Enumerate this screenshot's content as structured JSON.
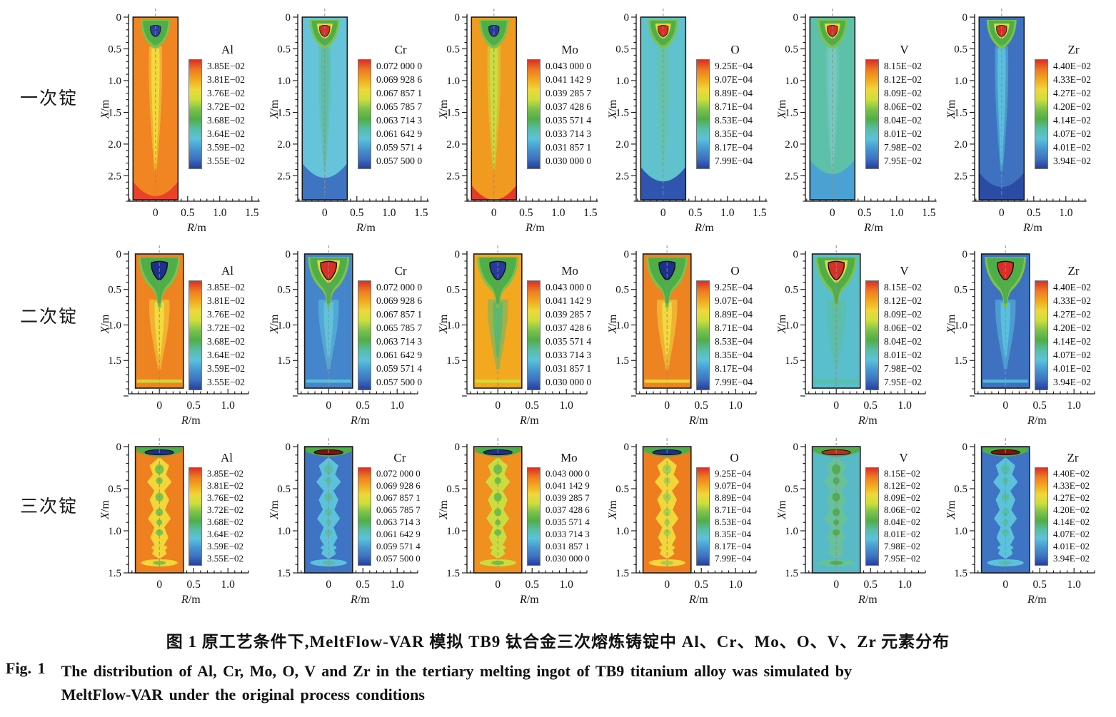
{
  "axis": {
    "x_var": "R",
    "x_unit": "/m",
    "y_var": "X",
    "y_unit": "/m"
  },
  "colorbar": [
    "#d92f26",
    "#ee7a22",
    "#f2a81f",
    "#eed83a",
    "#cede3c",
    "#7cc24b",
    "#4fae47",
    "#57bda5",
    "#5cc2dc",
    "#4597d0",
    "#3e72c1",
    "#253f9e"
  ],
  "legends": {
    "Al": {
      "title": "Al",
      "values": [
        "3.85E−02",
        "3.81E−02",
        "3.76E−02",
        "3.72E−02",
        "3.68E−02",
        "3.64E−02",
        "3.59E−02",
        "3.55E−02"
      ]
    },
    "Cr": {
      "title": "Cr",
      "values": [
        "0.072 000 0",
        "0.069 928 6",
        "0.067 857 1",
        "0.065 785 7",
        "0.063 714 3",
        "0.061 642 9",
        "0.059 571 4",
        "0.057 500 0"
      ]
    },
    "Mo": {
      "title": "Mo",
      "values": [
        "0.043 000 0",
        "0.041 142 9",
        "0.039 285 7",
        "0.037 428 6",
        "0.035 571 4",
        "0.033 714 3",
        "0.031 857 1",
        "0.030 000 0"
      ]
    },
    "O": {
      "title": "O",
      "values": [
        "9.25E−04",
        "9.07E−04",
        "8.89E−04",
        "8.71E−04",
        "8.53E−04",
        "8.35E−04",
        "8.17E−04",
        "7.99E−04"
      ]
    },
    "V": {
      "title": "V",
      "values": [
        "8.15E−02",
        "8.12E−02",
        "8.09E−02",
        "8.06E−02",
        "8.04E−02",
        "8.01E−02",
        "7.98E−02",
        "7.95E−02"
      ]
    },
    "Zr": {
      "title": "Zr",
      "values": [
        "4.40E−02",
        "4.33E−02",
        "4.27E−02",
        "4.20E−02",
        "4.14E−02",
        "4.07E−02",
        "4.01E−02",
        "3.94E−02"
      ]
    }
  },
  "rows": [
    {
      "key": "r1",
      "label": "一次锭",
      "yticks": [
        "0",
        "0.5",
        "1.0",
        "1.5",
        "2.0",
        "2.5"
      ],
      "ymax": 2.9,
      "plots": [
        {
          "el": "Al",
          "xticks": [
            "0",
            "0.5",
            "1.0",
            "1.5"
          ],
          "xmax": 1.62
        },
        {
          "el": "Cr",
          "xticks": [
            "0",
            "0.5",
            "1.0",
            "1.5"
          ],
          "xmax": 1.62
        },
        {
          "el": "Mo",
          "xticks": [
            "0",
            "0.5",
            "1.0",
            "1.5"
          ],
          "xmax": 1.62
        },
        {
          "el": "O",
          "xticks": [
            "0",
            "0.5",
            "1.0",
            "1.5"
          ],
          "xmax": 1.62
        },
        {
          "el": "V",
          "xticks": [
            "0",
            "0.5",
            "1.0",
            "1.5"
          ],
          "xmax": 1.62
        },
        {
          "el": "Zr",
          "xticks": [
            "0",
            "0.5",
            "1.0"
          ],
          "xmax": 1.32
        }
      ]
    },
    {
      "key": "r2",
      "label": "二次锭",
      "yticks": [
        "0",
        "0.5",
        "1.0",
        "1.5"
      ],
      "ymax": 1.97,
      "plots": [
        {
          "el": "Al",
          "xticks": [
            "0",
            "0.5",
            "1.0"
          ],
          "xmax": 1.3
        },
        {
          "el": "Cr",
          "xticks": [
            "0",
            "0.5",
            "1.0"
          ],
          "xmax": 1.3
        },
        {
          "el": "Mo",
          "xticks": [
            "0",
            "0.5",
            "1.0"
          ],
          "xmax": 1.3
        },
        {
          "el": "O",
          "xticks": [
            "0",
            "0.5",
            "1.0"
          ],
          "xmax": 1.3
        },
        {
          "el": "V",
          "xticks": [
            "0",
            "0.5",
            "1.0"
          ],
          "xmax": 1.3
        },
        {
          "el": "Zr",
          "xticks": [
            "0",
            "0.5",
            "1.0"
          ],
          "xmax": 1.3
        }
      ]
    },
    {
      "key": "r3",
      "label": "三次锭",
      "yticks": [
        "0",
        "0.5",
        "1.0",
        "1.5"
      ],
      "ymax": 1.5,
      "plots": [
        {
          "el": "Al",
          "xticks": [
            "0",
            "0.5",
            "1.0"
          ],
          "xmax": 1.3
        },
        {
          "el": "Cr",
          "xticks": [
            "0",
            "0.5",
            "1.0"
          ],
          "xmax": 1.3
        },
        {
          "el": "Mo",
          "xticks": [
            "0",
            "0.5",
            "1.0"
          ],
          "xmax": 1.3
        },
        {
          "el": "O",
          "xticks": [
            "0",
            "0.5",
            "1.0"
          ],
          "xmax": 1.3
        },
        {
          "el": "V",
          "xticks": [
            "0",
            "0.5",
            "1.0"
          ],
          "xmax": 1.3
        },
        {
          "el": "Zr",
          "xticks": [
            "0",
            "0.5",
            "1.0"
          ],
          "xmax": 1.3
        }
      ]
    }
  ],
  "patterns": {
    "r1": {
      "Al": {
        "bg": "#f08521",
        "col": "#f4d93e",
        "v": "#4fae47",
        "vout": "#7cc24b",
        "ring": null,
        "core": "#2b3f9e",
        "bottom": "#e8432a",
        "bf": 0.9
      },
      "Cr": {
        "bg": "#66c4da",
        "col": "#5abfa4",
        "v": "#4fae47",
        "vout": "#7cc24b",
        "ring": "#e4d93c",
        "core": "#d92f26",
        "bottom": "#3e74c2",
        "bf": 0.8
      },
      "Mo": {
        "bg": "#f19a20",
        "col": "#ccdc3e",
        "v": "#4fae47",
        "vout": "#7cc24b",
        "ring": null,
        "core": "#28389b",
        "bottom": "#e23c28",
        "bf": 0.92
      },
      "O": {
        "bg": "#60c2cc",
        "col": "#64c3ab",
        "v": "#4fae47",
        "vout": "#7cc24b",
        "ring": "#e4d93c",
        "core": "#d92f26",
        "bottom": "#2f55ae",
        "bf": 0.82
      },
      "V": {
        "bg": "#5dc0a8",
        "col": "#74cac0",
        "v": "#4fae47",
        "vout": "#7cc24b",
        "ring": "#e4d93c",
        "core": "#d92f26",
        "bottom": "#4aa2d4",
        "bf": 0.78
      },
      "Zr": {
        "bg": "#3e72c1",
        "col": "#5abedc",
        "v": "#4fae47",
        "vout": "#7cc24b",
        "ring": "#cede3c",
        "core": "#d92f26",
        "bottom": "#2b4ca5",
        "bf": 0.85
      }
    },
    "r2": {
      "Al": {
        "bg": "#ee8421",
        "v": "#4fae47",
        "vout": "#7cc24b",
        "col": "#f2d93e",
        "ring": null,
        "core": "#1f2f8e",
        "band": "#cede3c"
      },
      "Cr": {
        "bg": "#4585cc",
        "v": "#4fae47",
        "vout": "#7cc24b",
        "col": "#5dc3dc",
        "ring": "#e4d93c",
        "core": "#d92f26",
        "band": "#5dc3dc"
      },
      "Mo": {
        "bg": "#f2a81f",
        "v": "#4fae47",
        "vout": "#7cc24b",
        "col": "#5cb96e",
        "ring": null,
        "core": "#28389b",
        "band": "#cede3c"
      },
      "O": {
        "bg": "#ee8421",
        "v": "#4fae47",
        "vout": "#7cc24b",
        "col": "#f2d93e",
        "ring": null,
        "core": "#1f2f8e",
        "band": "#f2d93e"
      },
      "V": {
        "bg": "#59bfcd",
        "v": "#4fae47",
        "vout": "#7cc24b",
        "col": "#5abfa4",
        "ring": "#e4d93c",
        "core": "#d92f26",
        "band": "#5abfa4"
      },
      "Zr": {
        "bg": "#3e72c1",
        "v": "#4fae47",
        "vout": "#7cc24b",
        "col": "#5abedc",
        "ring": null,
        "core": "#d92f26",
        "band": "#5abedc"
      }
    },
    "r3": {
      "Al": {
        "bg": "#ee8020",
        "strip": "#4fae47",
        "topband": "#1d2f86",
        "col": "#f2d63a",
        "blob": "#7cc24b"
      },
      "Cr": {
        "bg": "#3e74c3",
        "strip": "#4fae47",
        "topband": "#7c130e",
        "col": "#5cc2dc",
        "blob": "#57bda5"
      },
      "Mo": {
        "bg": "#ef901f",
        "strip": "#4fae47",
        "topband": "#1d2f86",
        "col": "#ccdc3e",
        "blob": "#6fbf4a"
      },
      "O": {
        "bg": "#ee7d20",
        "strip": "#4fae47",
        "topband": "#1d2f86",
        "col": "#f2d63a",
        "blob": "#a9d04a"
      },
      "V": {
        "bg": "#57bac6",
        "strip": "#4fae47",
        "topband": "#c32b1e",
        "col": "#67c29b",
        "blob": "#4fae47"
      },
      "Zr": {
        "bg": "#3e74c3",
        "strip": "#4fae47",
        "topband": "#7c130e",
        "col": "#5cc2dc",
        "blob": "#57bda5"
      }
    }
  },
  "caption": {
    "zh": "图 1  原工艺条件下,MeltFlow-VAR 模拟 TB9 钛合金三次熔炼铸锭中 Al、Cr、Mo、O、V、Zr 元素分布",
    "fig": "Fig. 1",
    "en1": "The distribution of Al, Cr, Mo, O, V and Zr in the tertiary melting ingot of TB9 titanium alloy was simulated by",
    "en2": "MeltFlow-VAR under the original process conditions"
  },
  "chart_data": {
    "type": "heatmap",
    "description": "3x6 grid of axisymmetric contour maps: element concentration distributions (Al, Cr, Mo, O, V, Zr) in VAR-melted TB9 titanium ingots after first (一次锭), second (二次锭) and third (三次锭) melting",
    "xlabel": "R/m",
    "ylabel": "X/m",
    "rows": [
      {
        "ingot": "一次锭",
        "x_range": [
          -0.35,
          0.35
        ],
        "depth_range": [
          0,
          2.9
        ],
        "x_ticks": [
          0,
          0.5,
          1.0,
          1.5
        ]
      },
      {
        "ingot": "二次锭",
        "x_range": [
          -0.35,
          0.35
        ],
        "depth_range": [
          0,
          1.97
        ],
        "x_ticks": [
          0,
          0.5,
          1.0
        ]
      },
      {
        "ingot": "三次锭",
        "x_range": [
          -0.35,
          0.35
        ],
        "depth_range": [
          0,
          1.5
        ],
        "x_ticks": [
          0,
          0.5,
          1.0
        ]
      }
    ],
    "series": [
      {
        "name": "Al",
        "scale_levels": [
          0.0385,
          0.0381,
          0.0376,
          0.0372,
          0.0368,
          0.0364,
          0.0359,
          0.0355
        ]
      },
      {
        "name": "Cr",
        "scale_levels": [
          0.072,
          0.0699286,
          0.0678571,
          0.0657857,
          0.0637143,
          0.0616429,
          0.0595714,
          0.0575
        ]
      },
      {
        "name": "Mo",
        "scale_levels": [
          0.043,
          0.0411429,
          0.0392857,
          0.0374286,
          0.0355714,
          0.0337143,
          0.0318571,
          0.03
        ]
      },
      {
        "name": "O",
        "scale_levels": [
          0.000925,
          0.000907,
          0.000889,
          0.000871,
          0.000853,
          0.000835,
          0.000817,
          0.000799
        ]
      },
      {
        "name": "V",
        "scale_levels": [
          0.0815,
          0.0812,
          0.0809,
          0.0806,
          0.0804,
          0.0801,
          0.0798,
          0.0795
        ]
      },
      {
        "name": "Zr",
        "scale_levels": [
          0.044,
          0.0433,
          0.0427,
          0.042,
          0.0414,
          0.0407,
          0.0401,
          0.0394
        ]
      }
    ],
    "legend_position": "inside-right of each panel",
    "grid": false
  }
}
